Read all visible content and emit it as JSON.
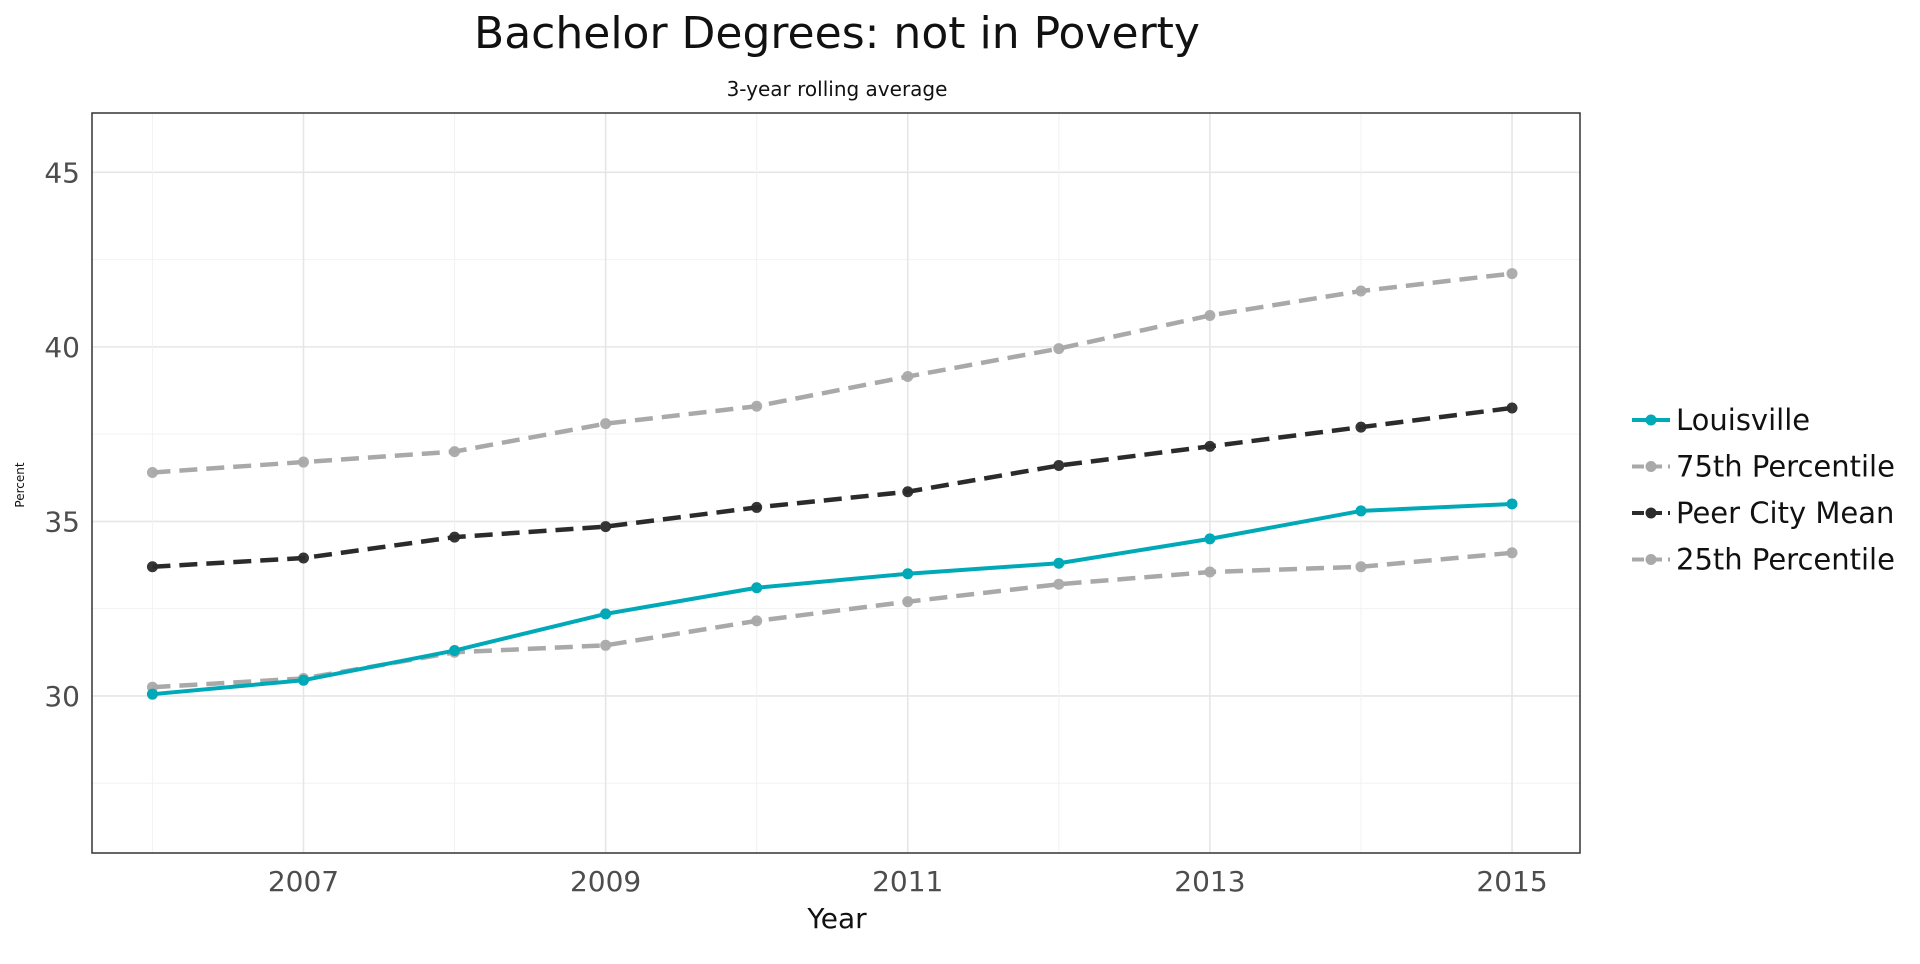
{
  "chart_data": {
    "type": "line",
    "title": "Bachelor Degrees: not in Poverty",
    "subtitle": "3-year rolling average",
    "xlabel": "Year",
    "ylabel": "Percent",
    "x": [
      2006,
      2007,
      2008,
      2009,
      2010,
      2011,
      2012,
      2013,
      2014,
      2015
    ],
    "xlim": [
      2005.6,
      2015.45
    ],
    "ylim": [
      25.5,
      46.7
    ],
    "x_ticks": [
      2007,
      2009,
      2011,
      2013,
      2015
    ],
    "y_ticks": [
      30,
      35,
      40,
      45
    ],
    "grid": true,
    "legend_position": "right",
    "series": [
      {
        "name": "Louisville",
        "values": [
          30.05,
          30.45,
          31.3,
          32.35,
          33.1,
          33.5,
          33.8,
          34.5,
          35.3,
          35.5
        ],
        "color": "#00a9b7",
        "style": "solid"
      },
      {
        "name": "75th Percentile",
        "values": [
          36.4,
          36.7,
          37.0,
          37.8,
          38.3,
          39.15,
          39.95,
          40.9,
          41.6,
          42.1
        ],
        "color": "#a9a9a9",
        "style": "dashed"
      },
      {
        "name": "Peer City Mean",
        "values": [
          33.7,
          33.95,
          34.55,
          34.85,
          35.4,
          35.85,
          36.6,
          37.15,
          37.7,
          38.25
        ],
        "color": "#2b2b2b",
        "style": "dashed"
      },
      {
        "name": "25th Percentile",
        "values": [
          30.25,
          30.5,
          31.25,
          31.45,
          32.15,
          32.7,
          33.2,
          33.55,
          33.7,
          34.1
        ],
        "color": "#a9a9a9",
        "style": "dashed"
      }
    ]
  }
}
